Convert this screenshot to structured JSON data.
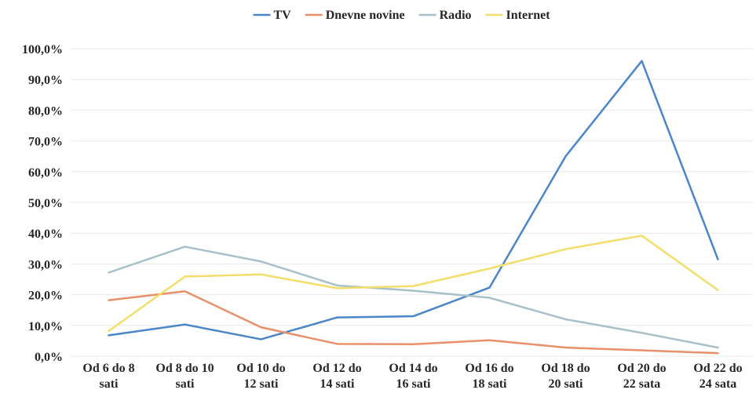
{
  "chart_data": {
    "type": "line",
    "categories": [
      [
        "Od 6 do 8",
        "sati"
      ],
      [
        "Od 8 do 10",
        "sati"
      ],
      [
        "Od 10 do",
        "12 sati"
      ],
      [
        "Od 12 do",
        "14 sati"
      ],
      [
        "Od 14 do",
        "16 sati"
      ],
      [
        "Od 16 do",
        "18 sati"
      ],
      [
        "Od 18 do",
        "20 sati"
      ],
      [
        "Od 20 do",
        "22 sata"
      ],
      [
        "Od 22 do",
        "24 sata"
      ]
    ],
    "series": [
      {
        "name": "TV",
        "color": "#4a86c8",
        "values": [
          6.8,
          10.3,
          5.5,
          12.6,
          13.0,
          22.3,
          65.0,
          96.0,
          31.5
        ]
      },
      {
        "name": "Dnevne novine",
        "color": "#e8906a",
        "values": [
          18.2,
          21.1,
          9.4,
          4.0,
          3.9,
          5.2,
          2.8,
          1.9,
          1.0
        ]
      },
      {
        "name": "Radio",
        "color": "#a8c0c8",
        "values": [
          27.2,
          35.6,
          30.8,
          23.0,
          21.3,
          19.0,
          12.0,
          7.6,
          2.8
        ]
      },
      {
        "name": "Internet",
        "color": "#f3de6c",
        "values": [
          8.2,
          25.9,
          26.6,
          22.1,
          22.8,
          28.5,
          34.8,
          39.2,
          21.5
        ]
      }
    ],
    "yticks": [
      "0,0%",
      "10,0%",
      "20,0%",
      "30,0%",
      "40,0%",
      "50,0%",
      "60,0%",
      "70,0%",
      "80,0%",
      "90,0%",
      "100,0%"
    ],
    "ylim": [
      0,
      100
    ],
    "grid": true,
    "legend": "top-center"
  }
}
